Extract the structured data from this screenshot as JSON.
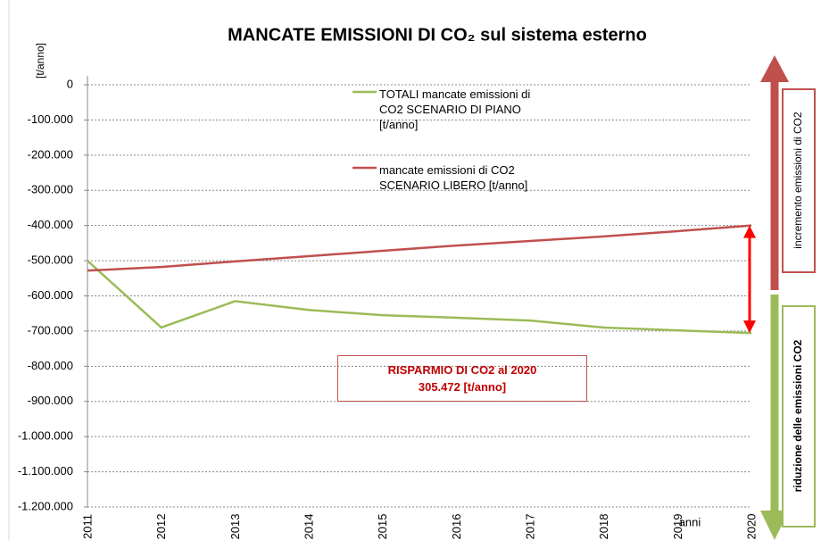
{
  "chart_data": {
    "type": "line",
    "title": "MANCATE EMISSIONI DI CO₂ sul sistema esterno",
    "y_label": "[t/anno]",
    "x_label": "anni",
    "categories": [
      "2011",
      "2012",
      "2013",
      "2014",
      "2015",
      "2016",
      "2017",
      "2018",
      "2019",
      "2020"
    ],
    "series": [
      {
        "name": "TOTALI mancate emissioni di CO2 SCENARIO DI PIANO [t/anno]",
        "color": "#9bbb59",
        "values": [
          -500000,
          -690000,
          -615000,
          -640000,
          -655000,
          -662000,
          -670000,
          -690000,
          -698000,
          -705472
        ]
      },
      {
        "name": "mancate emissioni di CO2 SCENARIO LIBERO [t/anno]",
        "color": "#c0504d",
        "values": [
          -528000,
          -518000,
          -502000,
          -487000,
          -472000,
          -457000,
          -444000,
          -431000,
          -416000,
          -400000
        ]
      }
    ],
    "ylim": [
      -1200000,
      0
    ],
    "yticks": [
      0,
      {
        "value": -100000,
        "label": "-100.000"
      },
      {
        "value": -200000,
        "label": "-200.000"
      },
      {
        "value": -300000,
        "label": "-300.000"
      },
      {
        "value": -400000,
        "label": "-400.000"
      },
      {
        "value": -500000,
        "label": "-500.000"
      },
      {
        "value": -600000,
        "label": "-600.000"
      },
      {
        "value": -700000,
        "label": "-700.000"
      },
      {
        "value": -800000,
        "label": "-800.000"
      },
      {
        "value": -900000,
        "label": "-900.000"
      },
      {
        "value": -1000000,
        "label": "-1.000.000"
      },
      {
        "value": -1100000,
        "label": "-1.100.000"
      },
      {
        "value": -1200000,
        "label": "-1.200.000"
      }
    ],
    "grid": true,
    "annotations": {
      "savings": [
        "RISPARMIO DI CO2 al 2020",
        "305.472 [t/anno]"
      ],
      "increase": "incremento emissioni di CO2",
      "reduction": "riduzione delle emissioni  CO2"
    }
  }
}
